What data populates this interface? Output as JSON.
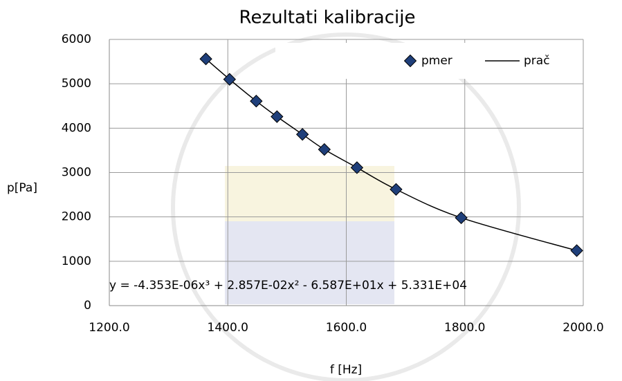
{
  "chart_data": {
    "type": "scatter",
    "title": "Rezultati kalibracije",
    "x_label": "f [Hz]",
    "y_label": "p[Pa]",
    "annotation": "y = -4.353E-06x³ + 2.857E-02x² - 6.587E+01x + 5.331E+04",
    "x": [
      1363,
      1403,
      1448,
      1483,
      1526,
      1563,
      1618,
      1684,
      1794,
      1989
    ],
    "series": [
      {
        "name": "pmer",
        "mode": "markers",
        "color": "#1f3f7a",
        "values": [
          5560,
          5100,
          4610,
          4260,
          3860,
          3520,
          3110,
          2620,
          1980,
          1240
        ]
      },
      {
        "name": "prač",
        "mode": "line",
        "color": "#000000",
        "values": [
          5560,
          5100,
          4610,
          4260,
          3860,
          3520,
          3110,
          2620,
          1980,
          1240
        ]
      }
    ],
    "xlim": [
      1200,
      2000
    ],
    "xticks": [
      {
        "value": 1200,
        "label": "1200.0"
      },
      {
        "value": 1400,
        "label": "1400.0"
      },
      {
        "value": 1600,
        "label": "1600.0"
      },
      {
        "value": 1800,
        "label": "1800.0"
      },
      {
        "value": 2000,
        "label": "2000.0"
      }
    ],
    "ylim": [
      0,
      6000
    ],
    "yticks": [
      0,
      1000,
      2000,
      3000,
      4000,
      5000,
      6000
    ],
    "grid": true,
    "legend": "top-right"
  }
}
